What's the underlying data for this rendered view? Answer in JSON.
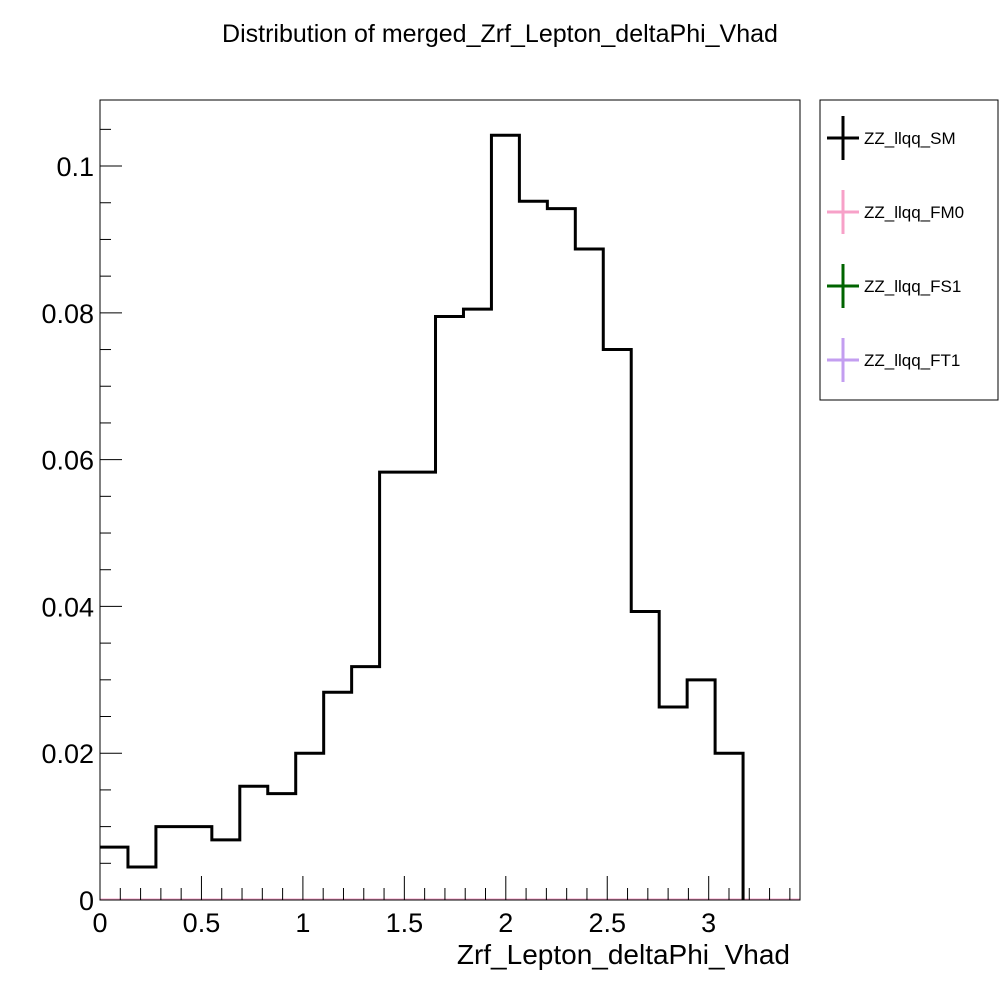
{
  "chart_data": {
    "type": "histogram",
    "title": "Distribution of merged_Zrf_Lepton_deltaPhi_Vhad",
    "xlabel": "Zrf_Lepton_deltaPhi_Vhad",
    "ylabel": "",
    "xlim": [
      0,
      3.45
    ],
    "ylim": [
      0,
      0.109
    ],
    "x_ticks": [
      0,
      0.5,
      1,
      1.5,
      2,
      2.5,
      3
    ],
    "x_tick_labels": [
      "0",
      "0.5",
      "1",
      "1.5",
      "2",
      "2.5",
      "3"
    ],
    "y_ticks": [
      0,
      0.02,
      0.04,
      0.06,
      0.08,
      0.1
    ],
    "y_tick_labels": [
      "0",
      "0.02",
      "0.04",
      "0.06",
      "0.08",
      "0.1"
    ],
    "bin_edges": [
      0,
      0.1378,
      0.2756,
      0.4134,
      0.5512,
      0.689,
      0.8268,
      0.9646,
      1.1024,
      1.2402,
      1.378,
      1.5158,
      1.6536,
      1.7914,
      1.9292,
      2.067,
      2.2048,
      2.3426,
      2.4804,
      2.6182,
      2.756,
      2.8938,
      3.0316,
      3.1694
    ],
    "series": [
      {
        "name": "ZZ_llqq_SM",
        "color": "#000000",
        "values": [
          0.0072,
          0.0045,
          0.01,
          0.01,
          0.0082,
          0.0155,
          0.0145,
          0.02,
          0.0283,
          0.0318,
          0.0583,
          0.0583,
          0.0795,
          0.0805,
          0.1042,
          0.0952,
          0.0942,
          0.0887,
          0.075,
          0.0393,
          0.0263,
          0.03,
          0.02
        ]
      },
      {
        "name": "ZZ_llqq_FM0",
        "color": "#f7a1c8",
        "values": [
          0,
          0,
          0,
          0,
          0,
          0,
          0,
          0,
          0,
          0,
          0,
          0,
          0,
          0,
          0,
          0,
          0,
          0,
          0,
          0,
          0,
          0,
          0
        ]
      },
      {
        "name": "ZZ_llqq_FS1",
        "color": "#006400",
        "values": [
          0,
          0,
          0,
          0,
          0,
          0,
          0,
          0,
          0,
          0,
          0,
          0,
          0,
          0,
          0,
          0,
          0,
          0,
          0,
          0,
          0,
          0,
          0
        ]
      },
      {
        "name": "ZZ_llqq_FT1",
        "color": "#c39ef0",
        "values": [
          0,
          0,
          0,
          0,
          0,
          0,
          0,
          0,
          0,
          0,
          0,
          0,
          0,
          0,
          0,
          0,
          0,
          0,
          0,
          0,
          0,
          0,
          0
        ]
      }
    ],
    "legend_position": "right-top",
    "grid": false
  }
}
